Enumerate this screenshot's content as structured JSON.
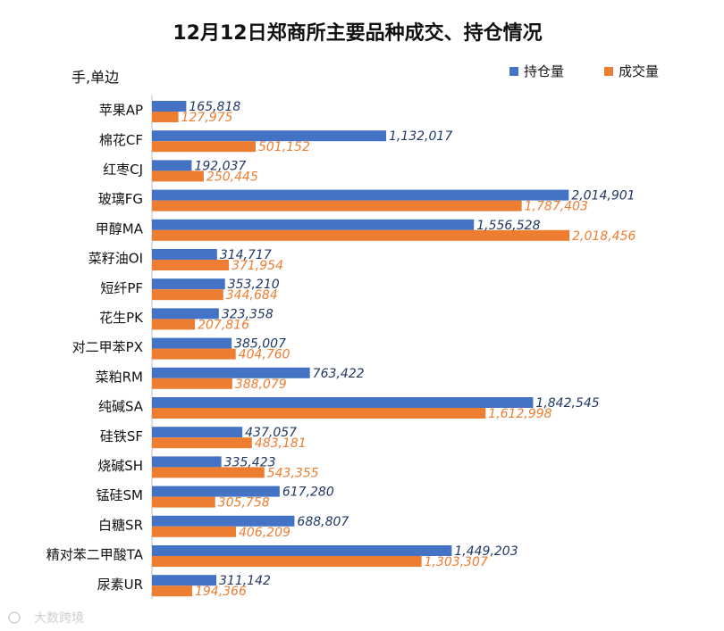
{
  "chart_data": {
    "type": "bar",
    "orientation": "horizontal",
    "title": "12月12日郑商所主要品种成交、持仓情况",
    "unit_label": "手,单边",
    "legend_position": "top-right",
    "grid": false,
    "xlim": [
      0,
      2100000
    ],
    "categories": [
      "苹果AP",
      "棉花CF",
      "红枣CJ",
      "玻璃FG",
      "甲醇MA",
      "菜籽油OI",
      "短纤PF",
      "花生PK",
      "对二甲苯PX",
      "菜粕RM",
      "纯碱SA",
      "硅铁SF",
      "烧碱SH",
      "锰硅SM",
      "白糖SR",
      "精对苯二甲酸TA",
      "尿素UR"
    ],
    "series": [
      {
        "name": "持仓量",
        "color": "#4472c4",
        "values": [
          165818,
          1132017,
          192037,
          2014901,
          1556528,
          314717,
          353210,
          323358,
          385007,
          763422,
          1842545,
          437057,
          335423,
          617280,
          688807,
          1449203,
          311142
        ],
        "labels": [
          "165,818",
          "1,132,017",
          "192,037",
          "2,014,901",
          "1,556,528",
          "314,717",
          "353,210",
          "323,358",
          "385,007",
          "763,422",
          "1,842,545",
          "437,057",
          "335,423",
          "617,280",
          "688,807",
          "1,449,203",
          "311,142"
        ]
      },
      {
        "name": "成交量",
        "color": "#ed7d31",
        "values": [
          127975,
          501152,
          250445,
          1787403,
          2018456,
          371954,
          344684,
          207816,
          404760,
          388079,
          1612998,
          483181,
          543355,
          305758,
          406209,
          1303307,
          194366
        ],
        "labels": [
          "127,975",
          "501,152",
          "250,445",
          "1,787,403",
          "2,018,456",
          "371,954",
          "344,684",
          "207,816",
          "404,760",
          "388,079",
          "1,612,998",
          "483,181",
          "543,355",
          "305,758",
          "406,209",
          "1,303,307",
          "194,366"
        ]
      }
    ]
  },
  "watermark": "大数跨境"
}
